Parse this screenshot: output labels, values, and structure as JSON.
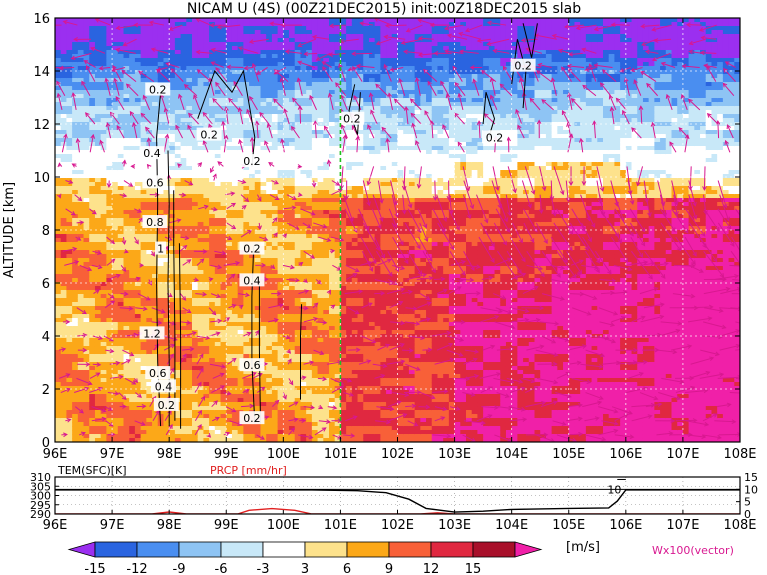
{
  "title": "NICAM  U  (4S)  (00Z21DEC2015)  init:00Z18DEC2015  slab",
  "colorbar_unit": "[m/s]",
  "vector_label": "Wx100(vector)",
  "chart_data": [
    {
      "type": "heatmap",
      "ylabel": "ALTITUDE  [km]",
      "xlim": [
        96,
        108
      ],
      "ylim": [
        0,
        16
      ],
      "x_ticks": [
        "96E",
        "97E",
        "98E",
        "99E",
        "100E",
        "101E",
        "102E",
        "103E",
        "104E",
        "105E",
        "106E",
        "107E",
        "108E"
      ],
      "y_ticks": [
        "0",
        "2",
        "4",
        "6",
        "8",
        "10",
        "12",
        "14",
        "16"
      ],
      "colorbar_levels": [
        "-15",
        "-12",
        "-9",
        "-6",
        "-3",
        "3",
        "6",
        "9",
        "12",
        "15"
      ],
      "colors": [
        "#9b2ff0",
        "#2a64e0",
        "#4a8ef0",
        "#8ec4f4",
        "#c8e8f8",
        "#ffffff",
        "#fde28c",
        "#fca818",
        "#f86038",
        "#e02840",
        "#a8102a",
        "#f020a8"
      ],
      "vertical_line_x": 101,
      "contour_labels": [
        {
          "x": 97.8,
          "y": 13.3,
          "text": "0.2"
        },
        {
          "x": 98.7,
          "y": 11.6,
          "text": "0.2"
        },
        {
          "x": 99.45,
          "y": 10.6,
          "text": "0.2"
        },
        {
          "x": 101.2,
          "y": 12.2,
          "text": "0.2"
        },
        {
          "x": 103.7,
          "y": 11.5,
          "text": "0.2"
        },
        {
          "x": 104.2,
          "y": 14.2,
          "text": "0.2"
        },
        {
          "x": 97.7,
          "y": 10.9,
          "text": "0.4"
        },
        {
          "x": 97.75,
          "y": 9.8,
          "text": "0.6"
        },
        {
          "x": 97.75,
          "y": 8.3,
          "text": "0.8"
        },
        {
          "x": 97.85,
          "y": 7.3,
          "text": "1"
        },
        {
          "x": 99.45,
          "y": 7.3,
          "text": "0.2"
        },
        {
          "x": 99.45,
          "y": 6.1,
          "text": "0.4"
        },
        {
          "x": 97.7,
          "y": 4.1,
          "text": "1.2"
        },
        {
          "x": 97.8,
          "y": 2.6,
          "text": "0.6"
        },
        {
          "x": 97.9,
          "y": 2.1,
          "text": "0.4"
        },
        {
          "x": 97.95,
          "y": 1.4,
          "text": "0.2"
        },
        {
          "x": 99.45,
          "y": 2.9,
          "text": "0.6"
        },
        {
          "x": 99.45,
          "y": 0.9,
          "text": "0.2"
        }
      ]
    },
    {
      "type": "line",
      "xlim": [
        96,
        108
      ],
      "left_label": "TEM(SFC)[K]",
      "right_label": "PRCP [mm/hr]",
      "y_ticks_left": [
        "290",
        "295",
        "300",
        "305",
        "310"
      ],
      "y_ticks_right": [
        "0",
        "5",
        "10",
        "15"
      ],
      "annotation": "10",
      "series": [
        {
          "color": "#000000",
          "x": [
            96,
            100.5,
            101.3,
            101.8,
            102.2,
            102.5,
            103.0,
            103.5,
            104.0,
            105.0,
            105.7,
            105.85,
            106.0,
            108
          ],
          "y": [
            303,
            303,
            302.6,
            301.5,
            298,
            293,
            291,
            291.5,
            292.5,
            293,
            293.3,
            297,
            303,
            303
          ]
        },
        {
          "color": "#e02020",
          "x": [
            96,
            97.7,
            98.0,
            98.3,
            99.2,
            99.4,
            99.8,
            100.2,
            100.5,
            101.0,
            102.4,
            102.7,
            103.0,
            108
          ],
          "y": [
            0,
            0,
            0.8,
            0,
            0,
            1.5,
            2.2,
            1.5,
            0,
            0,
            0,
            0.5,
            0,
            0
          ]
        }
      ]
    }
  ]
}
